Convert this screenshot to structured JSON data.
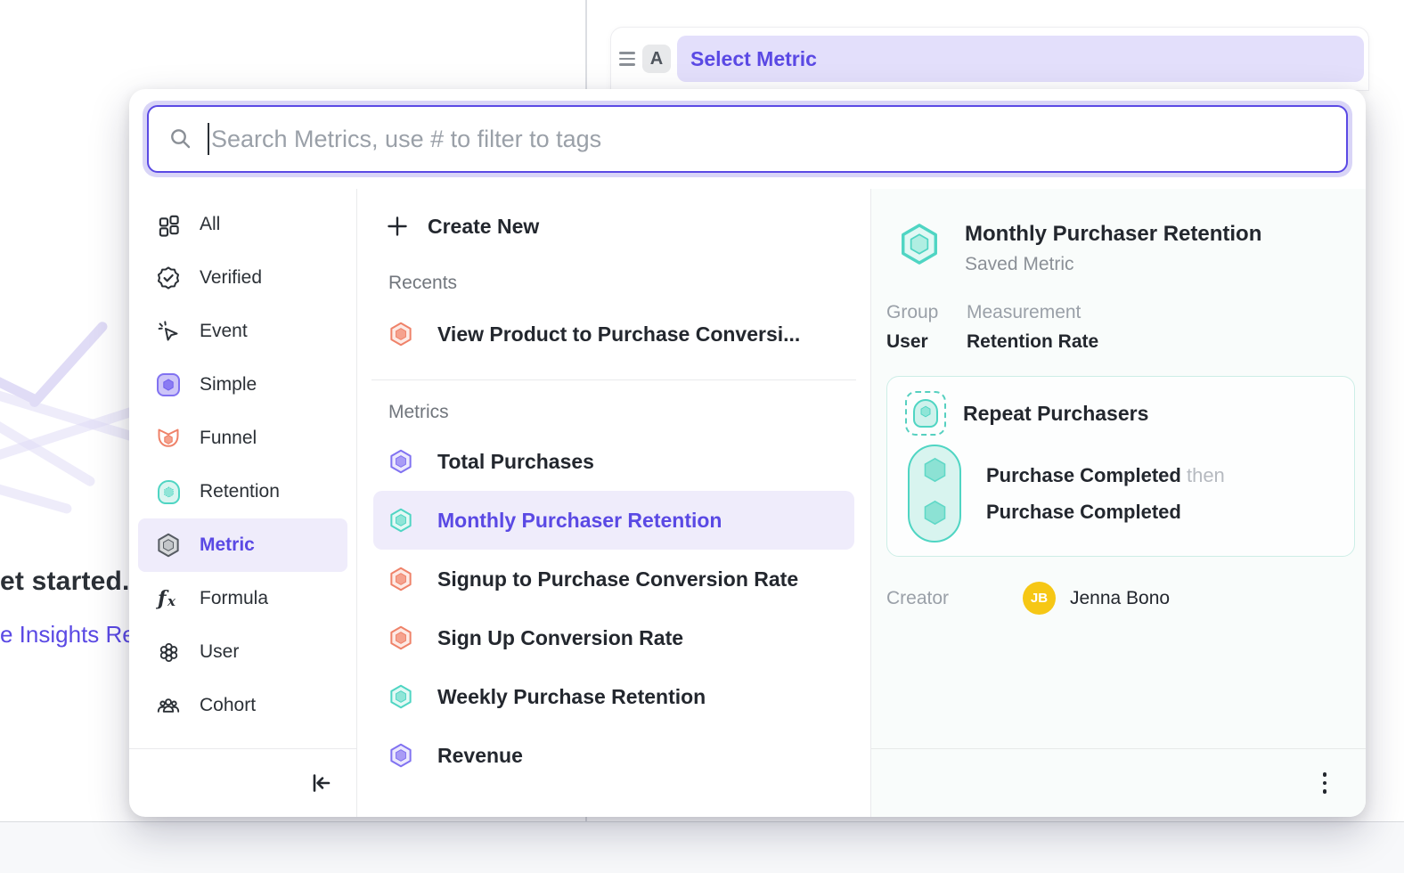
{
  "background": {
    "headline_fragment": "et started.",
    "link_fragment": "e Insights Re"
  },
  "metric_row_bar": {
    "badge": "A",
    "value": "Select Metric"
  },
  "search": {
    "placeholder": "Search Metrics, use # to filter to tags"
  },
  "sidebar": {
    "items": [
      {
        "label": "All",
        "icon": "grid-icon",
        "selected": false
      },
      {
        "label": "Verified",
        "icon": "verified-badge-icon",
        "selected": false
      },
      {
        "label": "Event",
        "icon": "event-cursor-icon",
        "selected": false
      },
      {
        "label": "Simple",
        "icon": "simple-metric-icon",
        "selected": false
      },
      {
        "label": "Funnel",
        "icon": "funnel-icon",
        "selected": false
      },
      {
        "label": "Retention",
        "icon": "retention-arch-icon",
        "selected": false
      },
      {
        "label": "Metric",
        "icon": "metric-hexagon-icon",
        "selected": true
      },
      {
        "label": "Formula",
        "icon": "formula-fx-icon",
        "selected": false
      },
      {
        "label": "User",
        "icon": "user-flower-icon",
        "selected": false
      },
      {
        "label": "Cohort",
        "icon": "cohort-people-icon",
        "selected": false
      }
    ]
  },
  "list_panel": {
    "create_new": "Create New",
    "recents_header": "Recents",
    "recents": [
      {
        "label": "View Product to Purchase Conversi...",
        "icon": "hex-orange",
        "selected": false
      }
    ],
    "metrics_header": "Metrics",
    "metrics": [
      {
        "label": "Total Purchases",
        "icon": "hex-purple",
        "selected": false
      },
      {
        "label": "Monthly Purchaser Retention",
        "icon": "hex-teal",
        "selected": true
      },
      {
        "label": "Signup to Purchase Conversion Rate",
        "icon": "hex-orange",
        "selected": false
      },
      {
        "label": "Sign Up Conversion Rate",
        "icon": "hex-orange",
        "selected": false
      },
      {
        "label": "Weekly Purchase Retention",
        "icon": "hex-teal",
        "selected": false
      },
      {
        "label": "Revenue",
        "icon": "hex-purple",
        "selected": false
      }
    ]
  },
  "detail_panel": {
    "title": "Monthly Purchaser Retention",
    "type_label": "Saved Metric",
    "group_label": "Group",
    "group_value": "User",
    "measurement_label": "Measurement",
    "measurement_value": "Retention Rate",
    "definition": {
      "name": "Repeat Purchasers",
      "step_1": "Purchase Completed",
      "connector": "then",
      "step_2": "Purchase Completed"
    },
    "creator_label": "Creator",
    "creator_initials": "JB",
    "creator_name": "Jenna Bono"
  },
  "colors": {
    "accent_purple": "#5a49e4",
    "highlight_purple": "#efecfb",
    "pill_purple": "#e3dffb",
    "teal": "#4fd5c3",
    "orange": "#ef8269",
    "icon_purple": "#8172f1",
    "avatar_yellow": "#f6c715"
  }
}
